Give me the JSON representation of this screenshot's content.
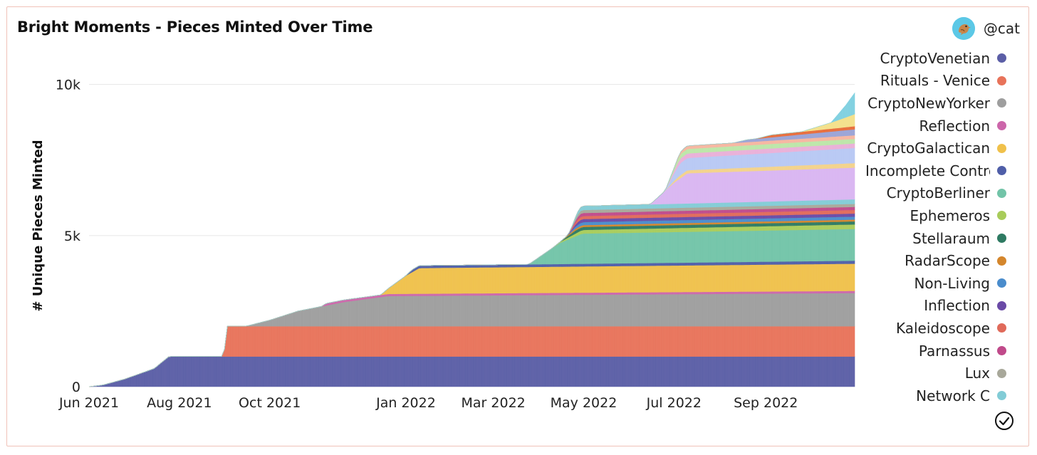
{
  "header": {
    "author": "@cat"
  },
  "colors": {
    "grid": "#e6e6e6",
    "axis_text": "#222222"
  },
  "chart_data": {
    "type": "area",
    "title": "Bright Moments - Pieces Minted Over Time",
    "ylabel": "# Unique Pieces Minted",
    "xlabel": "",
    "ylim": [
      0,
      11500
    ],
    "x_range": [
      "2021-06-01",
      "2022-10-31"
    ],
    "x_ticks": [
      {
        "date": "2021-06-01",
        "label": "Jun 2021"
      },
      {
        "date": "2021-08-01",
        "label": "Aug 2021"
      },
      {
        "date": "2021-10-01",
        "label": "Oct 2021"
      },
      {
        "date": "2022-01-01",
        "label": "Jan 2022"
      },
      {
        "date": "2022-03-01",
        "label": "Mar 2022"
      },
      {
        "date": "2022-05-01",
        "label": "May 2022"
      },
      {
        "date": "2022-07-01",
        "label": "Jul 2022"
      },
      {
        "date": "2022-09-01",
        "label": "Sep 2022"
      }
    ],
    "y_ticks": [
      {
        "value": 0,
        "label": "0"
      },
      {
        "value": 5000,
        "label": "5k"
      },
      {
        "value": 10000,
        "label": "10k"
      }
    ],
    "grid": true,
    "legend_position": "right",
    "series": [
      {
        "name": "CryptoVenetian",
        "color": "#5b5ea6",
        "points": [
          [
            "2021-06-01",
            0
          ],
          [
            "2021-06-10",
            50
          ],
          [
            "2021-06-25",
            250
          ],
          [
            "2021-07-15",
            600
          ],
          [
            "2021-07-25",
            1000
          ],
          [
            "2022-10-31",
            1000
          ]
        ]
      },
      {
        "name": "Rituals - Venice",
        "color": "#e8735a",
        "points": [
          [
            "2021-08-31",
            0
          ],
          [
            "2021-09-02",
            1000
          ],
          [
            "2022-10-31",
            1000
          ]
        ]
      },
      {
        "name": "CryptoNewYorker",
        "color": "#9e9e9e",
        "points": [
          [
            "2021-09-15",
            0
          ],
          [
            "2021-10-01",
            200
          ],
          [
            "2021-10-20",
            500
          ],
          [
            "2021-11-20",
            800
          ],
          [
            "2021-12-20",
            1000
          ],
          [
            "2022-10-31",
            1100
          ]
        ]
      },
      {
        "name": "Reflection",
        "color": "#cc66aa",
        "points": [
          [
            "2021-11-05",
            0
          ],
          [
            "2021-11-08",
            70
          ],
          [
            "2022-10-31",
            70
          ]
        ]
      },
      {
        "name": "CryptoGalactican",
        "color": "#f0c14b",
        "points": [
          [
            "2021-12-15",
            0
          ],
          [
            "2022-01-01",
            600
          ],
          [
            "2022-01-10",
            850
          ],
          [
            "2022-10-31",
            900
          ]
        ]
      },
      {
        "name": "Incomplete Control",
        "color": "#4f5ea8",
        "points": [
          [
            "2022-01-01",
            0
          ],
          [
            "2022-01-05",
            80
          ],
          [
            "2022-10-31",
            100
          ]
        ]
      },
      {
        "name": "CryptoBerliner",
        "color": "#72c4a8",
        "points": [
          [
            "2022-03-25",
            0
          ],
          [
            "2022-04-15",
            700
          ],
          [
            "2022-04-30",
            1000
          ],
          [
            "2022-10-31",
            1050
          ]
        ]
      },
      {
        "name": "Ephemeros",
        "color": "#a8cc5a",
        "points": [
          [
            "2022-04-10",
            0
          ],
          [
            "2022-04-30",
            120
          ],
          [
            "2022-10-31",
            150
          ]
        ]
      },
      {
        "name": "Stellaraum",
        "color": "#2e7a62",
        "points": [
          [
            "2022-04-15",
            0
          ],
          [
            "2022-04-25",
            100
          ],
          [
            "2022-10-31",
            100
          ]
        ]
      },
      {
        "name": "RadarScope",
        "color": "#d4862c",
        "points": [
          [
            "2022-04-15",
            0
          ],
          [
            "2022-04-25",
            60
          ],
          [
            "2022-10-31",
            60
          ]
        ]
      },
      {
        "name": "Non-Living",
        "color": "#4a8ccc",
        "points": [
          [
            "2022-04-20",
            0
          ],
          [
            "2022-04-28",
            100
          ],
          [
            "2022-10-31",
            100
          ]
        ]
      },
      {
        "name": "Inflection",
        "color": "#6a4aa6",
        "points": [
          [
            "2022-04-20",
            0
          ],
          [
            "2022-04-28",
            100
          ],
          [
            "2022-10-31",
            100
          ]
        ]
      },
      {
        "name": "Kaleidoscope",
        "color": "#e06a5a",
        "points": [
          [
            "2022-04-20",
            0
          ],
          [
            "2022-04-28",
            100
          ],
          [
            "2022-10-31",
            120
          ]
        ]
      },
      {
        "name": "Parnassus",
        "color": "#c04a8a",
        "points": [
          [
            "2022-04-22",
            0
          ],
          [
            "2022-04-28",
            100
          ],
          [
            "2022-10-31",
            100
          ]
        ]
      },
      {
        "name": "Lux",
        "color": "#a8a89a",
        "points": [
          [
            "2022-04-22",
            0
          ],
          [
            "2022-04-28",
            100
          ],
          [
            "2022-10-31",
            100
          ]
        ]
      },
      {
        "name": "Network C",
        "color": "#82ccd6",
        "points": [
          [
            "2022-04-22",
            0
          ],
          [
            "2022-04-30",
            130
          ],
          [
            "2022-10-31",
            150
          ]
        ]
      },
      {
        "name": "",
        "color": "#d9b5f2",
        "points": [
          [
            "2022-06-15",
            0
          ],
          [
            "2022-07-01",
            700
          ],
          [
            "2022-07-10",
            1000
          ],
          [
            "2022-10-31",
            1050
          ]
        ]
      },
      {
        "name": "",
        "color": "#f3d28a",
        "points": [
          [
            "2022-06-25",
            0
          ],
          [
            "2022-07-05",
            100
          ],
          [
            "2022-10-31",
            150
          ]
        ]
      },
      {
        "name": "",
        "color": "#b8c8f4",
        "points": [
          [
            "2022-06-25",
            0
          ],
          [
            "2022-07-05",
            400
          ],
          [
            "2022-10-31",
            500
          ]
        ]
      },
      {
        "name": "",
        "color": "#e9b0d8",
        "points": [
          [
            "2022-06-25",
            0
          ],
          [
            "2022-07-05",
            150
          ],
          [
            "2022-10-31",
            150
          ]
        ]
      },
      {
        "name": "",
        "color": "#bce6a8",
        "points": [
          [
            "2022-06-25",
            0
          ],
          [
            "2022-07-05",
            150
          ],
          [
            "2022-10-31",
            150
          ]
        ]
      },
      {
        "name": "",
        "color": "#f6b6a0",
        "points": [
          [
            "2022-07-01",
            0
          ],
          [
            "2022-07-08",
            100
          ],
          [
            "2022-10-31",
            120
          ]
        ]
      },
      {
        "name": "",
        "color": "#9aa3d6",
        "points": [
          [
            "2022-08-10",
            0
          ],
          [
            "2022-08-20",
            80
          ],
          [
            "2022-10-31",
            200
          ]
        ]
      },
      {
        "name": "",
        "color": "#e86c3a",
        "points": [
          [
            "2022-08-25",
            0
          ],
          [
            "2022-09-05",
            80
          ],
          [
            "2022-10-31",
            100
          ]
        ]
      },
      {
        "name": "",
        "color": "#f4e08a",
        "points": [
          [
            "2022-09-25",
            0
          ],
          [
            "2022-10-15",
            200
          ],
          [
            "2022-10-31",
            400
          ]
        ]
      },
      {
        "name": "",
        "color": "#7fd0e0",
        "points": [
          [
            "2022-10-15",
            0
          ],
          [
            "2022-10-25",
            400
          ],
          [
            "2022-10-31",
            700
          ]
        ]
      }
    ]
  },
  "legend": {
    "items": [
      {
        "label": "CryptoVenetian",
        "color": "#5b5ea6"
      },
      {
        "label": "Rituals - Venice",
        "color": "#e8735a"
      },
      {
        "label": "CryptoNewYorker",
        "color": "#9e9e9e"
      },
      {
        "label": "Reflection",
        "color": "#cc66aa"
      },
      {
        "label": "CryptoGalactican",
        "color": "#f0c14b"
      },
      {
        "label": "Incomplete Contro",
        "color": "#4f5ea8"
      },
      {
        "label": "CryptoBerliner",
        "color": "#72c4a8"
      },
      {
        "label": "Ephemeros",
        "color": "#a8cc5a"
      },
      {
        "label": "Stellaraum",
        "color": "#2e7a62"
      },
      {
        "label": "RadarScope",
        "color": "#d4862c"
      },
      {
        "label": "Non-Living",
        "color": "#4a8ccc"
      },
      {
        "label": "Inflection",
        "color": "#6a4aa6"
      },
      {
        "label": "Kaleidoscope",
        "color": "#e06a5a"
      },
      {
        "label": "Parnassus",
        "color": "#c04a8a"
      },
      {
        "label": "Lux",
        "color": "#a8a89a"
      },
      {
        "label": "Network C",
        "color": "#82ccd6"
      }
    ]
  },
  "icons": {
    "avatar": "bird-avatar-icon",
    "check": "check-circle-icon"
  }
}
